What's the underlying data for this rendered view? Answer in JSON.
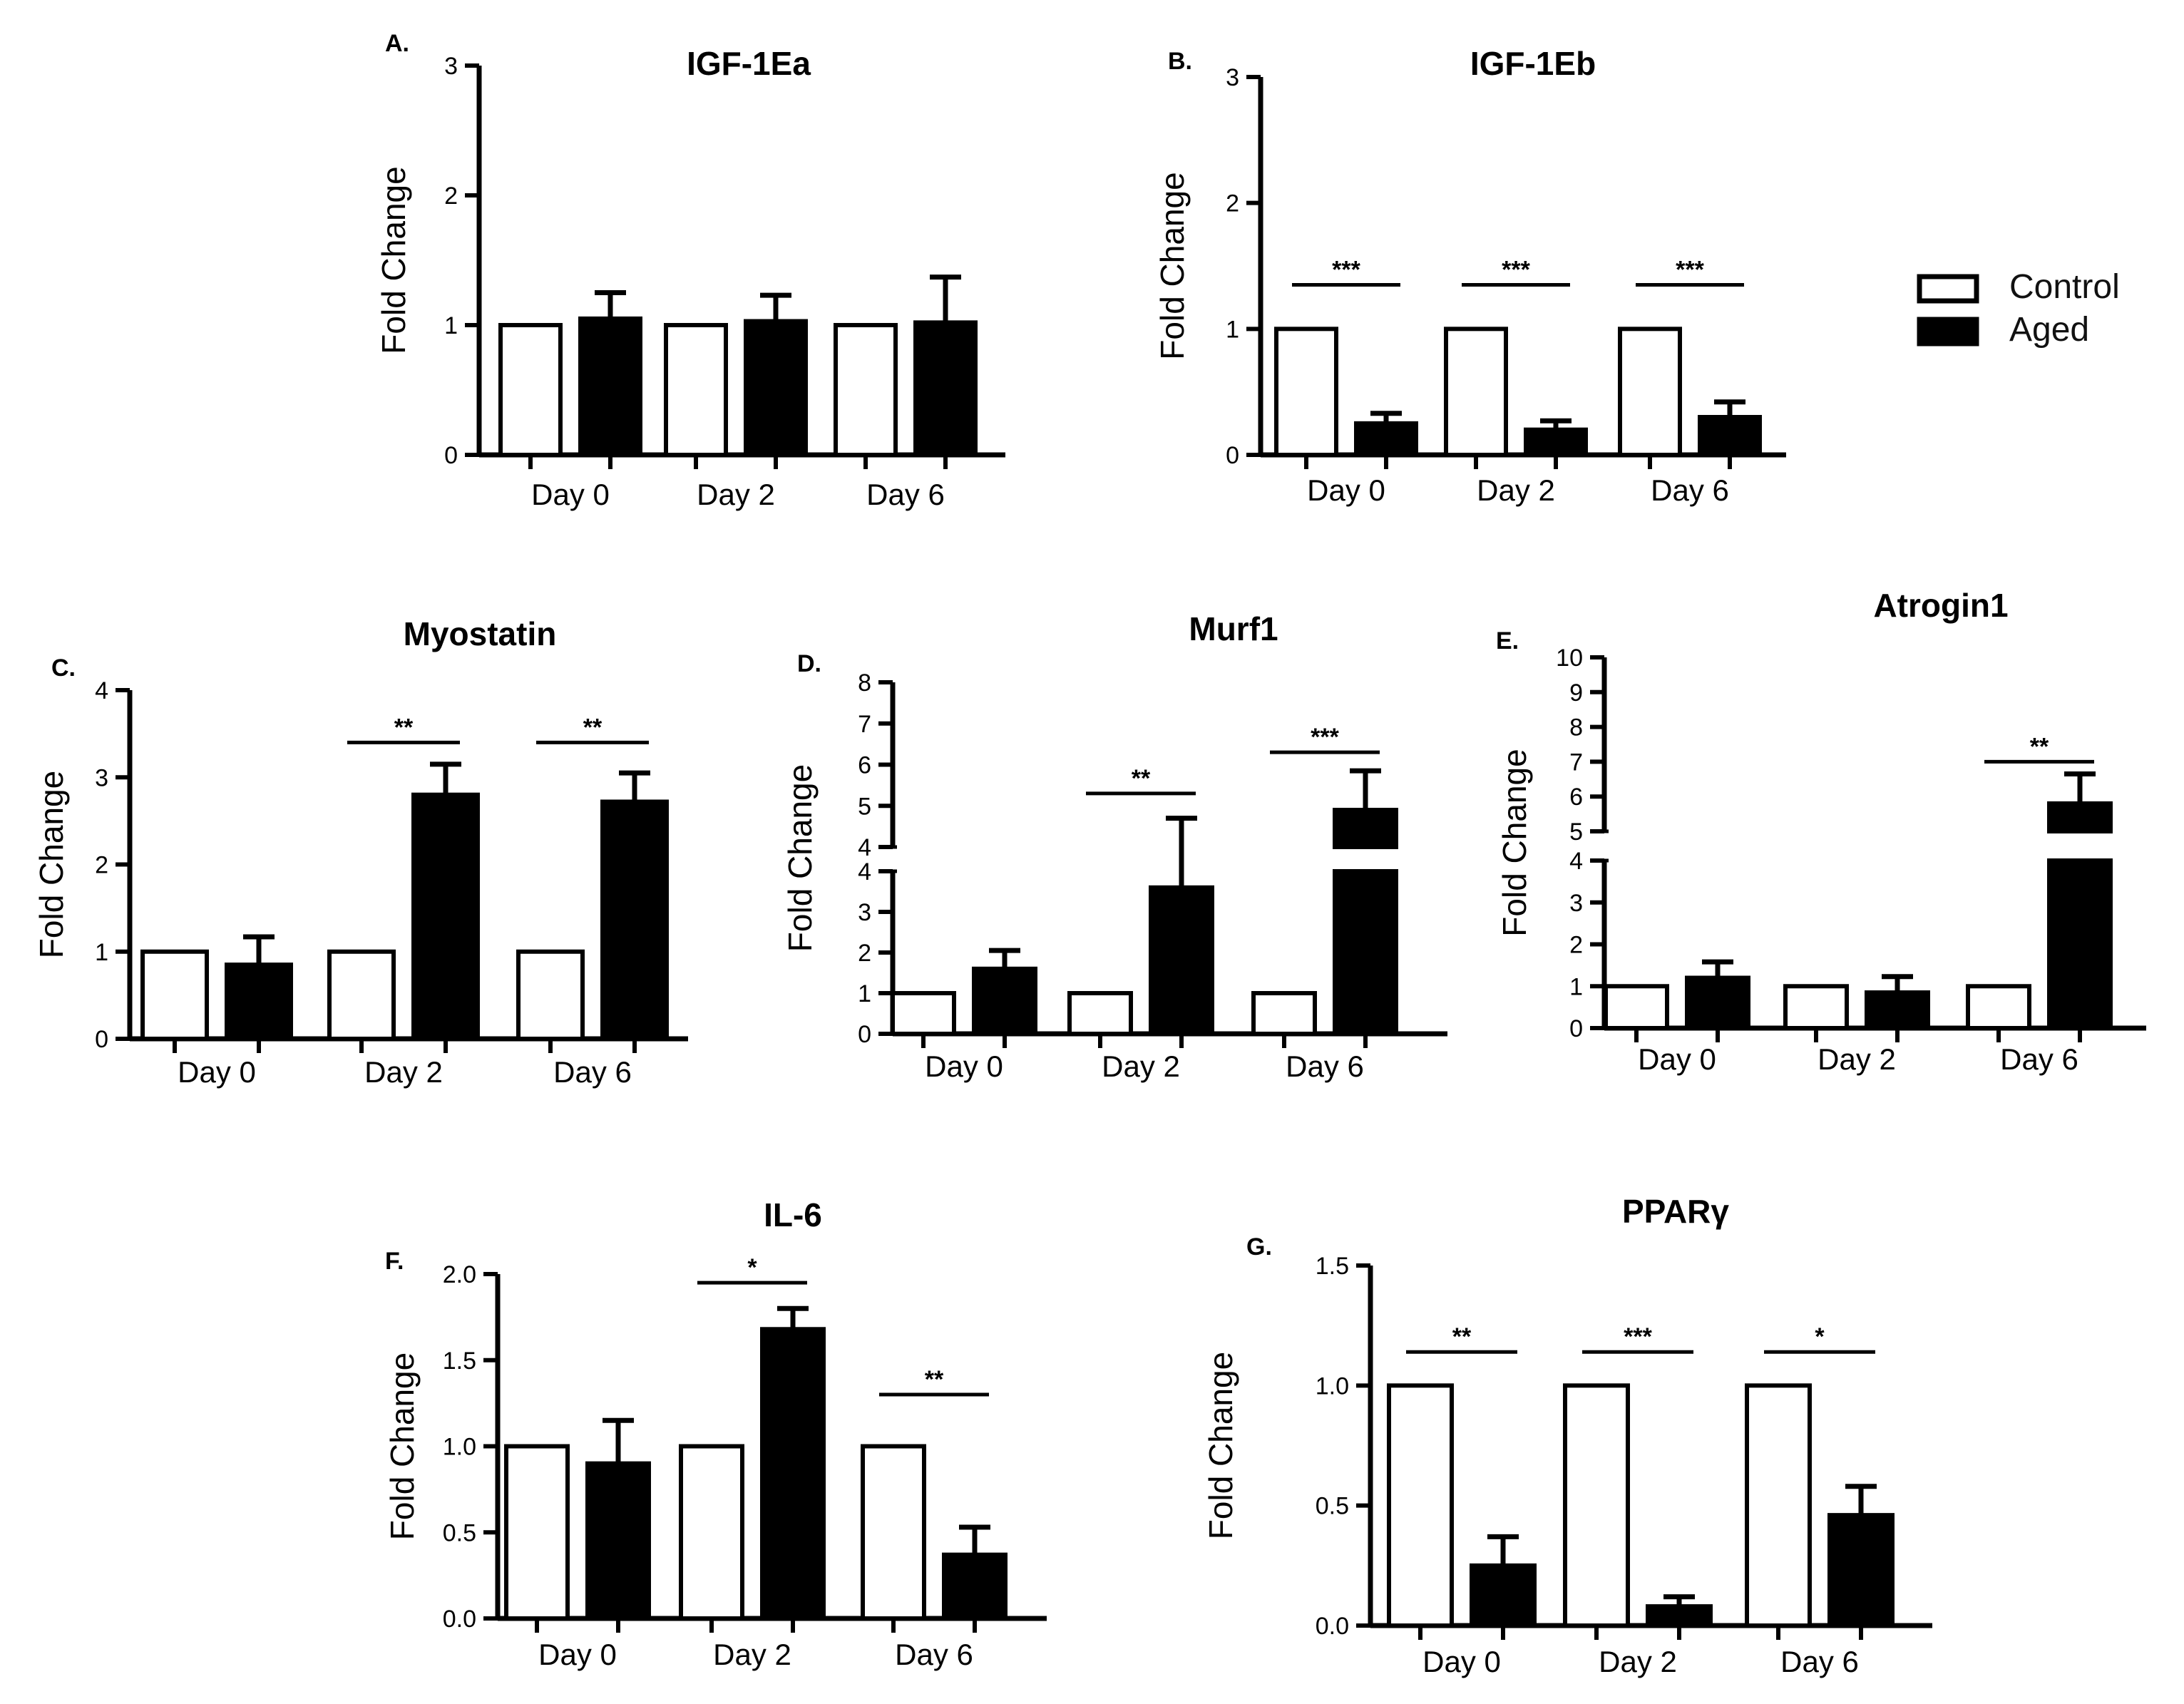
{
  "legend": {
    "items": [
      {
        "label": "Control",
        "fill": "#ffffff"
      },
      {
        "label": "Aged",
        "fill": "#000000"
      }
    ]
  },
  "chart_data": [
    {
      "id": "A",
      "panel_label": "A.",
      "type": "bar",
      "title": "IGF-1Ea",
      "ylabel": "Fold Change",
      "categories": [
        "Day 0",
        "Day 2",
        "Day 6"
      ],
      "series": [
        {
          "name": "Control",
          "values": [
            1,
            1,
            1
          ],
          "errors": [
            0,
            0,
            0
          ]
        },
        {
          "name": "Aged",
          "values": [
            1.05,
            1.03,
            1.02
          ],
          "errors": [
            0.2,
            0.2,
            0.35
          ]
        }
      ],
      "ylim": [
        0,
        3
      ],
      "yticks": [
        "0",
        "1",
        "2",
        "3"
      ],
      "significance": []
    },
    {
      "id": "B",
      "panel_label": "B.",
      "type": "bar",
      "title": "IGF-1Eb",
      "ylabel": "Fold Change",
      "categories": [
        "Day 0",
        "Day 2",
        "Day 6"
      ],
      "series": [
        {
          "name": "Control",
          "values": [
            1,
            1,
            1
          ],
          "errors": [
            0,
            0,
            0
          ]
        },
        {
          "name": "Aged",
          "values": [
            0.25,
            0.2,
            0.3
          ],
          "errors": [
            0.08,
            0.07,
            0.12
          ]
        }
      ],
      "ylim": [
        0,
        3
      ],
      "yticks": [
        "0",
        "1",
        "2",
        "3"
      ],
      "significance": [
        {
          "category": 0,
          "label": "***",
          "y": 1.35
        },
        {
          "category": 1,
          "label": "***",
          "y": 1.35
        },
        {
          "category": 2,
          "label": "***",
          "y": 1.35
        }
      ]
    },
    {
      "id": "C",
      "panel_label": "C.",
      "type": "bar",
      "title": "Myostatin",
      "ylabel": "Fold Change",
      "categories": [
        "Day 0",
        "Day 2",
        "Day 6"
      ],
      "series": [
        {
          "name": "Control",
          "values": [
            1,
            1,
            1
          ],
          "errors": [
            0,
            0,
            0
          ]
        },
        {
          "name": "Aged",
          "values": [
            0.85,
            2.8,
            2.72
          ],
          "errors": [
            0.32,
            0.35,
            0.33
          ]
        }
      ],
      "ylim": [
        0,
        4
      ],
      "yticks": [
        "0",
        "1",
        "2",
        "3",
        "4"
      ],
      "significance": [
        {
          "category": 1,
          "label": "**",
          "y": 3.4
        },
        {
          "category": 2,
          "label": "**",
          "y": 3.4
        }
      ]
    },
    {
      "id": "D",
      "panel_label": "D.",
      "type": "bar",
      "title": "Murf1",
      "ylabel": "Fold Change",
      "categories": [
        "Day 0",
        "Day 2",
        "Day 6"
      ],
      "series": [
        {
          "name": "Control",
          "values": [
            1,
            1,
            1
          ],
          "errors": [
            0,
            0,
            0
          ]
        },
        {
          "name": "Aged",
          "values": [
            1.6,
            3.6,
            4.9
          ],
          "errors": [
            0.45,
            1.1,
            0.95
          ]
        }
      ],
      "ylim": [
        0,
        8
      ],
      "yticks": [
        "0",
        "1",
        "2",
        "3",
        "4",
        "4",
        "5",
        "6",
        "7",
        "8"
      ],
      "axis_break": "between 4 and 4",
      "significance": [
        {
          "category": 1,
          "label": "**",
          "y": 5.3
        },
        {
          "category": 2,
          "label": "***",
          "y": 6.3
        }
      ]
    },
    {
      "id": "E",
      "panel_label": "E.",
      "type": "bar",
      "title": "Atrogin1",
      "ylabel": "Fold Change",
      "categories": [
        "Day 0",
        "Day 2",
        "Day 6"
      ],
      "series": [
        {
          "name": "Control",
          "values": [
            1,
            1,
            1
          ],
          "errors": [
            0,
            0,
            0
          ]
        },
        {
          "name": "Aged",
          "values": [
            1.2,
            0.85,
            5.8
          ],
          "errors": [
            0.38,
            0.38,
            0.85
          ]
        }
      ],
      "ylim": [
        0,
        10
      ],
      "yticks": [
        "0",
        "1",
        "2",
        "3",
        "4",
        "5",
        "6",
        "7",
        "8",
        "9",
        "10"
      ],
      "axis_break": "between 4 and 5",
      "significance": [
        {
          "category": 2,
          "label": "**",
          "y": 7.0
        }
      ]
    },
    {
      "id": "F",
      "panel_label": "F.",
      "type": "bar",
      "title": "IL-6",
      "ylabel": "Fold Change",
      "categories": [
        "Day 0",
        "Day 2",
        "Day 6"
      ],
      "series": [
        {
          "name": "Control",
          "values": [
            1.0,
            1.0,
            1.0
          ],
          "errors": [
            0,
            0,
            0
          ]
        },
        {
          "name": "Aged",
          "values": [
            0.9,
            1.68,
            0.37
          ],
          "errors": [
            0.25,
            0.12,
            0.16
          ]
        }
      ],
      "ylim": [
        0,
        2.0
      ],
      "yticks": [
        "0.0",
        "0.5",
        "1.0",
        "1.5",
        "2.0"
      ],
      "significance": [
        {
          "category": 1,
          "label": "*",
          "y": 1.95
        },
        {
          "category": 2,
          "label": "**",
          "y": 1.3
        }
      ]
    },
    {
      "id": "G",
      "panel_label": "G.",
      "type": "bar",
      "title": "PPARγ",
      "ylabel": "Fold Change",
      "categories": [
        "Day 0",
        "Day 2",
        "Day 6"
      ],
      "series": [
        {
          "name": "Control",
          "values": [
            1.0,
            1.0,
            1.0
          ],
          "errors": [
            0,
            0,
            0
          ]
        },
        {
          "name": "Aged",
          "values": [
            0.25,
            0.08,
            0.46
          ],
          "errors": [
            0.12,
            0.04,
            0.12
          ]
        }
      ],
      "ylim": [
        0,
        1.5
      ],
      "yticks": [
        "0.0",
        "0.5",
        "1.0",
        "1.5"
      ],
      "significance": [
        {
          "category": 0,
          "label": "**",
          "y": 1.14
        },
        {
          "category": 1,
          "label": "***",
          "y": 1.14
        },
        {
          "category": 2,
          "label": "*",
          "y": 1.14
        }
      ]
    }
  ]
}
